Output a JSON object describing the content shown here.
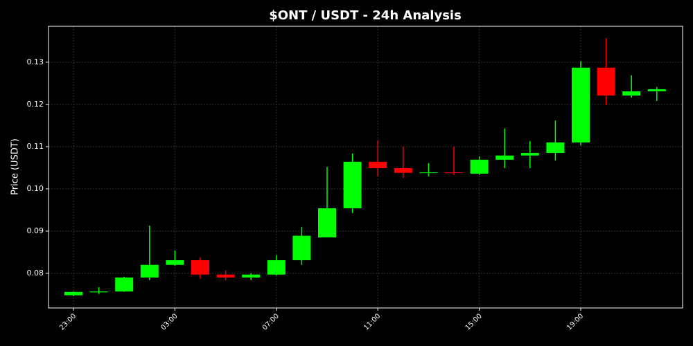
{
  "chart_data": {
    "type": "candlestick",
    "title": "$ONT / USDT - 24h Analysis",
    "y_label": "Price (USDT)",
    "categories": [
      "23:00",
      null,
      null,
      null,
      "03:00",
      null,
      null,
      null,
      "07:00",
      null,
      null,
      null,
      "11:00",
      null,
      null,
      null,
      "15:00",
      null,
      null,
      null,
      "19:00",
      null,
      null,
      null
    ],
    "open": [
      0.0748,
      0.0755,
      0.0757,
      0.079,
      0.082,
      0.0831,
      0.0797,
      0.079,
      0.0797,
      0.0831,
      0.0885,
      0.0954,
      0.1064,
      0.1049,
      0.1038,
      0.1039,
      0.1036,
      0.1069,
      0.1079,
      0.1085,
      0.111,
      0.1287,
      0.1221,
      0.1231
    ],
    "high": [
      0.0757,
      0.0767,
      0.0792,
      0.0913,
      0.0854,
      0.0838,
      0.0807,
      0.08,
      0.0843,
      0.091,
      0.1052,
      0.1084,
      0.1115,
      0.11,
      0.1061,
      0.11,
      0.1077,
      0.1143,
      0.1113,
      0.1162,
      0.1302,
      0.1357,
      0.1269,
      0.1241
    ],
    "low": [
      0.0746,
      0.0751,
      0.0756,
      0.0784,
      0.0818,
      0.0787,
      0.0784,
      0.0784,
      0.0795,
      0.082,
      0.0885,
      0.0943,
      0.103,
      0.1026,
      0.103,
      0.1033,
      0.1033,
      0.1049,
      0.1049,
      0.1067,
      0.1103,
      0.1198,
      0.1216,
      0.1208
    ],
    "close": [
      0.0756,
      0.0757,
      0.079,
      0.082,
      0.0831,
      0.0797,
      0.079,
      0.0797,
      0.0831,
      0.0889,
      0.0954,
      0.1064,
      0.1049,
      0.1038,
      0.1039,
      0.1038,
      0.1069,
      0.1079,
      0.1085,
      0.111,
      0.1287,
      0.1221,
      0.1231,
      0.1236
    ],
    "up_color": "#00ff00",
    "down_color": "#ff0000",
    "ylim": [
      0.0718,
      0.1385
    ],
    "yticks": [
      0.08,
      0.09,
      {
        "value": 0.1,
        "label": "0.10"
      },
      0.11,
      0.12,
      0.13
    ],
    "grid": true
  }
}
